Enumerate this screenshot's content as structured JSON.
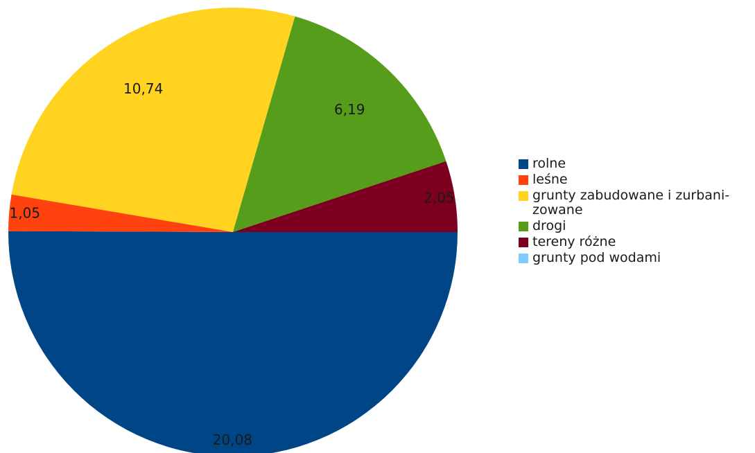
{
  "chart_data": {
    "type": "pie",
    "categories": [
      "rolne",
      "leśne",
      "grunty zabudowane i zurbani-zowane",
      "drogi",
      "tereny różne",
      "grunty pod wodami"
    ],
    "values": [
      20.08,
      1.05,
      10.74,
      6.19,
      2.05,
      0
    ],
    "value_labels": [
      "20,08",
      "1,05",
      "10,74",
      "6,19",
      "2,05",
      ""
    ],
    "colors": [
      "#004586",
      "#ff420e",
      "#ffd320",
      "#579d1c",
      "#7e0021",
      "#83caff"
    ],
    "legend_position": "right",
    "legend_labels": [
      "rolne",
      "leśne",
      "grunty zabudowane i zurbani-\nzowane",
      "drogi",
      "tereny różne",
      "grunty pod wodami"
    ]
  }
}
